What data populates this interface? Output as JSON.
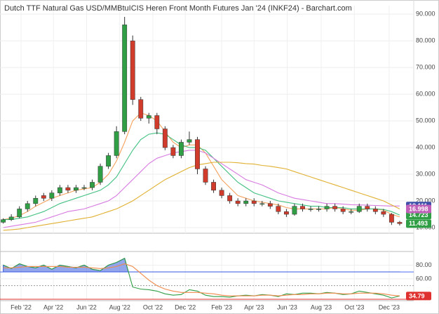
{
  "chart_data": [
    {
      "type": "candlestick",
      "title": "Dutch TTF Natural Gas USD/MMBtuICIS Heren Front Month Futures Jan '24 (INKF24) - Barchart.com",
      "open": [
        12,
        13,
        14,
        17,
        19,
        22,
        21,
        23,
        25,
        24,
        25,
        25,
        27,
        33,
        37,
        46,
        80,
        58,
        51,
        52,
        47,
        40,
        37,
        42,
        43,
        32,
        27,
        24,
        22,
        20,
        19,
        20,
        19,
        19,
        18,
        16,
        15,
        18,
        17,
        17,
        17,
        18,
        17,
        16,
        16,
        18,
        17,
        16,
        15,
        12
      ],
      "high": [
        13.5,
        15,
        18,
        20,
        22,
        23,
        24,
        26,
        26,
        26,
        26,
        28,
        34,
        38,
        48,
        89,
        82,
        59,
        53,
        53,
        48,
        41,
        43,
        46,
        44,
        33,
        28,
        25,
        23,
        21,
        21,
        21,
        20,
        20,
        19,
        17,
        19,
        19,
        18,
        18,
        19,
        19,
        18,
        17,
        19,
        19,
        18,
        17,
        15.5,
        12.5
      ],
      "low": [
        11.5,
        12.5,
        13.5,
        16,
        18,
        20,
        20,
        22,
        23,
        23,
        24,
        24,
        26,
        32,
        36,
        45,
        56,
        50,
        49,
        45,
        39,
        36,
        36,
        41,
        30,
        26,
        23,
        21,
        19,
        18,
        18,
        18,
        18,
        17,
        15,
        14,
        14.5,
        16,
        16,
        16,
        16,
        16,
        15,
        15,
        15.5,
        16,
        15,
        14,
        11,
        10.8
      ],
      "close": [
        13,
        14,
        17,
        19,
        21,
        21,
        23,
        25,
        24,
        25,
        25,
        27,
        33,
        37,
        46,
        86,
        58,
        51,
        52,
        47,
        40,
        37,
        42,
        43,
        32,
        27,
        24,
        22,
        20,
        19,
        20,
        19,
        19,
        18,
        16,
        15,
        18,
        17,
        17,
        17,
        18,
        17,
        16,
        16,
        18,
        17,
        16,
        15,
        12,
        11.493
      ],
      "up_color": "#2f9e44",
      "down_color": "#d03b2b",
      "close_label_color": "#2f9e44",
      "series": [
        {
          "color": "#f5a25d",
          "values": [
            13,
            13.5,
            14.5,
            16,
            18,
            19.5,
            21,
            22,
            23,
            24,
            24.5,
            25,
            27,
            30,
            35,
            42,
            50,
            53,
            52,
            50,
            46,
            42,
            40,
            41,
            41,
            38,
            33,
            28,
            25,
            22,
            21,
            20,
            19.5,
            19,
            18.5,
            17.5,
            17,
            17,
            17,
            17,
            17,
            17.5,
            17,
            16.5,
            16.5,
            17,
            17,
            16.5,
            15,
            14
          ]
        },
        {
          "color": "#40c080",
          "label_color": "#2f9e44",
          "values": [
            13,
            13,
            13.5,
            14,
            15,
            16,
            17.5,
            19,
            20,
            21,
            22,
            23,
            24,
            26,
            29,
            34,
            39,
            43,
            45,
            45.5,
            45,
            43,
            41,
            40,
            40,
            39,
            36,
            33,
            30,
            27,
            25,
            23,
            22,
            21,
            20,
            19.5,
            19,
            18.5,
            18,
            18,
            17.5,
            17.5,
            17.5,
            17,
            17,
            17,
            17,
            16.8,
            16,
            14.723
          ]
        },
        {
          "color": "#d77be0",
          "label_color": "#3d4fa8",
          "values": [
            10,
            10.5,
            11,
            11.5,
            12,
            13,
            14,
            15,
            16,
            16.5,
            17,
            18,
            19,
            20,
            22,
            25,
            28,
            31,
            34,
            36,
            37,
            38,
            38.5,
            39,
            39,
            38,
            36,
            34,
            32,
            30,
            28,
            27,
            26,
            24.5,
            23,
            22,
            21,
            20.5,
            20,
            19.5,
            19,
            19,
            18.8,
            18.6,
            18.5,
            18.4,
            18.3,
            18.2,
            18.1,
            18.111
          ]
        },
        {
          "color": "#e0b030",
          "label_color": "#c060b8",
          "values": [
            9,
            9.2,
            9.5,
            10,
            10.5,
            11,
            11.5,
            12,
            12.5,
            13,
            13.5,
            14,
            15,
            16,
            17,
            18.5,
            20,
            22,
            24,
            26,
            28,
            29.5,
            31,
            32.5,
            33.5,
            34,
            34.5,
            34.5,
            34.5,
            34.3,
            34,
            33.8,
            33.3,
            33,
            32.5,
            32,
            31,
            30,
            29,
            28,
            27,
            26,
            25,
            24,
            23,
            22,
            21,
            20,
            18.5,
            16.998
          ]
        }
      ],
      "ylim": [
        7.9,
        93.2
      ],
      "yticks": [
        {
          "value": 10,
          "label": "10.000"
        },
        {
          "value": 20,
          "label": "20.000"
        },
        {
          "value": 30,
          "label": "30.000"
        },
        {
          "value": 40,
          "label": "40.000"
        },
        {
          "value": 50,
          "label": "50.000"
        },
        {
          "value": 60,
          "label": "60.000"
        },
        {
          "value": 70,
          "label": "70.000"
        },
        {
          "value": 80,
          "label": "80.000"
        },
        {
          "value": 90,
          "label": "90.000"
        }
      ],
      "xlim": [
        -0.4,
        49.7
      ],
      "xticks": [
        {
          "value": 2.2,
          "label": "Feb '22"
        },
        {
          "value": 6.2,
          "label": "Apr '22"
        },
        {
          "value": 10.3,
          "label": "Jun '22"
        },
        {
          "value": 14.4,
          "label": "Aug '22"
        },
        {
          "value": 18.5,
          "label": "Oct '22"
        },
        {
          "value": 22.5,
          "label": "Dec '22"
        },
        {
          "value": 27,
          "label": "Feb '23"
        },
        {
          "value": 31,
          "label": "Apr '23"
        },
        {
          "value": 35.1,
          "label": "Jun '23"
        },
        {
          "value": 39.3,
          "label": "Aug '23"
        },
        {
          "value": 43.4,
          "label": "Oct '23"
        },
        {
          "value": 47.7,
          "label": "Dec '23"
        }
      ],
      "grid": true
    },
    {
      "type": "line",
      "series": [
        {
          "color": "#2f9e44",
          "fill": "#3b5bdb",
          "label_color": "#e03131",
          "values": [
            80,
            75,
            82,
            78,
            76,
            80,
            74,
            80,
            78,
            76,
            80,
            74,
            72,
            80,
            84,
            90,
            48,
            45,
            44,
            42,
            38,
            36,
            37,
            44,
            42,
            36,
            34,
            34,
            33,
            35,
            36,
            35,
            37,
            36,
            34,
            38,
            37,
            39,
            39,
            38,
            40,
            39,
            37,
            38,
            42,
            40,
            38,
            36,
            32,
            34.79
          ]
        },
        {
          "color": "#f08a4b",
          "values": [
            76,
            76,
            77,
            78,
            78,
            78,
            78,
            78,
            77,
            77,
            77,
            76,
            75,
            76,
            78,
            82,
            78,
            68,
            58,
            50,
            45,
            42,
            40,
            40,
            40,
            39,
            38,
            36,
            35,
            35,
            35,
            35,
            36,
            36,
            35,
            36,
            37,
            37,
            38,
            38,
            39,
            39,
            38,
            38,
            39,
            39,
            39,
            38,
            36,
            35
          ]
        }
      ],
      "levels": [
        {
          "value": 70,
          "color": "#4c6ef5"
        },
        {
          "value": 50,
          "color": "#999999",
          "dashed": true
        },
        {
          "value": 30,
          "color": "#e03131"
        }
      ],
      "ylim": [
        28,
        100
      ],
      "yticks": [
        {
          "value": 60,
          "label": "60.00"
        },
        {
          "value": 80,
          "label": "80.00"
        }
      ],
      "xlim": [
        -0.4,
        49.7
      ]
    }
  ]
}
